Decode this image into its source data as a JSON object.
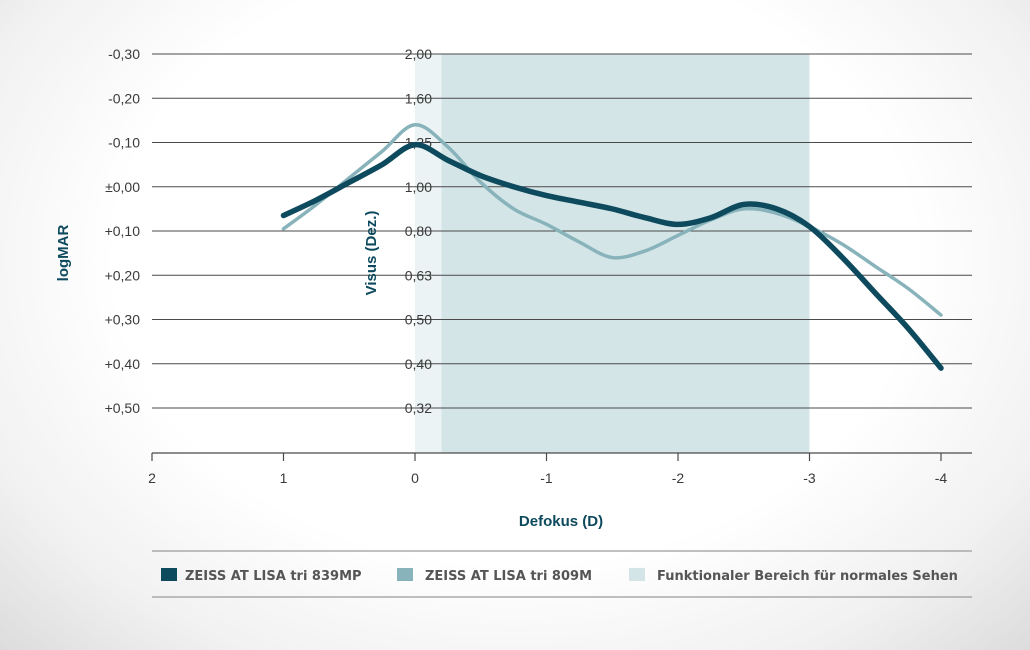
{
  "chart_data": {
    "type": "line",
    "xlabel": "Defokus (D)",
    "ylabel_left": "logMAR",
    "ylabel_right": "Visus (Dez.)",
    "x_ticks": [
      "2",
      "1",
      "0",
      "-1",
      "-2",
      "-3",
      "-4"
    ],
    "x_tick_values": [
      2,
      1,
      0,
      -1,
      -2,
      -3,
      -4
    ],
    "xlim": [
      2,
      -4.2
    ],
    "y_ticks_logmar": [
      "-0,30",
      "-0,20",
      "-0,10",
      "±0,00",
      "+0,10",
      "+0,20",
      "+0,30",
      "+0,40",
      "+0,50"
    ],
    "y_tick_values": [
      -0.3,
      -0.2,
      -0.1,
      0.0,
      0.1,
      0.2,
      0.3,
      0.4,
      0.5
    ],
    "y_ticks_visus": [
      "2,00",
      "1,60",
      "1,25",
      "1,00",
      "0,80",
      "0,63",
      "0,50",
      "0,40",
      "0,32"
    ],
    "ylim": [
      -0.3,
      0.6
    ],
    "y_inverted": true,
    "grid": true,
    "functional_range": {
      "label": "Funktionaler Bereich für normales Sehen",
      "from": -0.2,
      "to": -3.0,
      "color": "#d4e5e8"
    },
    "series": [
      {
        "name": "ZEISS AT LISA tri 839MP",
        "color": "#0d4a5e",
        "x": [
          1.0,
          0.75,
          0.5,
          0.25,
          0.0,
          -0.25,
          -0.5,
          -0.75,
          -1.0,
          -1.25,
          -1.5,
          -1.75,
          -2.0,
          -2.25,
          -2.5,
          -2.75,
          -3.0,
          -3.25,
          -3.5,
          -3.75,
          -4.0
        ],
        "y": [
          0.065,
          0.03,
          -0.01,
          -0.05,
          -0.095,
          -0.06,
          -0.025,
          0.0,
          0.02,
          0.035,
          0.05,
          0.07,
          0.085,
          0.07,
          0.04,
          0.05,
          0.09,
          0.16,
          0.24,
          0.32,
          0.41
        ]
      },
      {
        "name": "ZEISS AT LISA tri 809M",
        "color": "#88b3bb",
        "x": [
          1.0,
          0.75,
          0.5,
          0.25,
          0.0,
          -0.25,
          -0.5,
          -0.75,
          -1.0,
          -1.25,
          -1.5,
          -1.75,
          -2.0,
          -2.25,
          -2.5,
          -2.75,
          -3.0,
          -3.25,
          -3.5,
          -3.75,
          -4.0
        ],
        "y": [
          0.095,
          0.04,
          -0.02,
          -0.08,
          -0.14,
          -0.09,
          -0.01,
          0.05,
          0.085,
          0.125,
          0.16,
          0.145,
          0.11,
          0.075,
          0.05,
          0.06,
          0.09,
          0.13,
          0.18,
          0.23,
          0.29
        ]
      }
    ],
    "legend_position": "bottom"
  }
}
